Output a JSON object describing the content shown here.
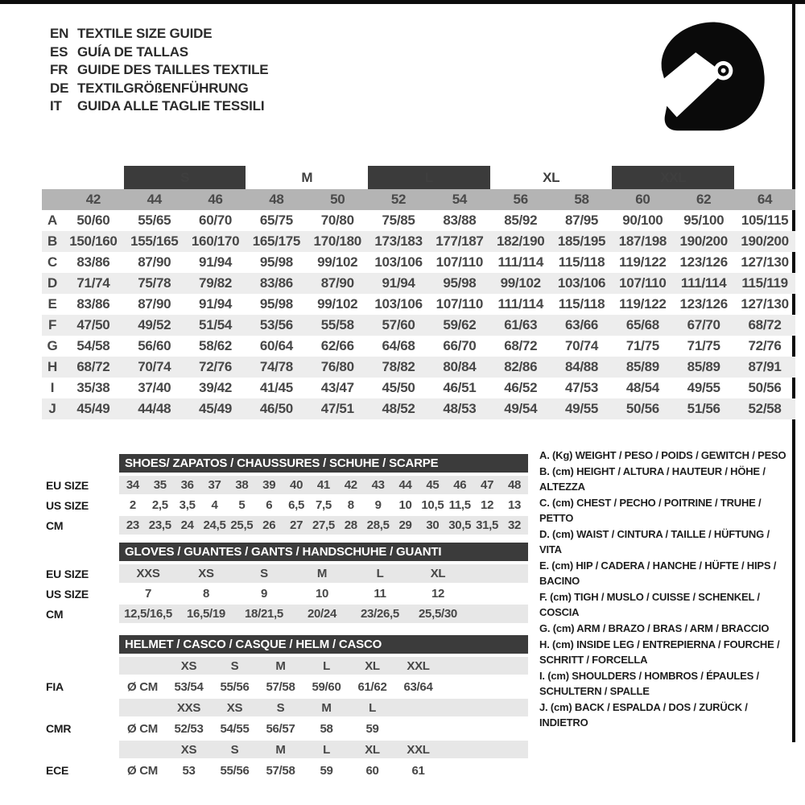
{
  "header": {
    "languages": [
      {
        "code": "EN",
        "title": "TEXTILE SIZE GUIDE"
      },
      {
        "code": "ES",
        "title": "GUÍA DE TALLAS"
      },
      {
        "code": "FR",
        "title": "GUIDE DES TAILLES TEXTILE"
      },
      {
        "code": "DE",
        "title": "TEXTILGRÖßENFÜHRUNG"
      },
      {
        "code": "IT",
        "title": "GUIDA ALLE TAGLIE TESSILI"
      }
    ],
    "icon": "racing-helmet"
  },
  "colors": {
    "dark_bar": "#3b3b3b",
    "size_band": "#b4b4b4",
    "stripe": "#ededed",
    "small_band": "#e7e7e7",
    "frame": "#0c0c0c"
  },
  "size_table": {
    "size_groups": [
      {
        "label": "S",
        "boxed": true
      },
      {
        "label": "M",
        "boxed": false
      },
      {
        "label": "L",
        "boxed": true
      },
      {
        "label": "XL",
        "boxed": false
      },
      {
        "label": "XXL",
        "boxed": true
      }
    ],
    "sizes": [
      "42",
      "44",
      "46",
      "48",
      "50",
      "52",
      "54",
      "56",
      "58",
      "60",
      "62",
      "64"
    ],
    "rows": [
      {
        "letter": "A",
        "values": [
          "50/60",
          "55/65",
          "60/70",
          "65/75",
          "70/80",
          "75/85",
          "83/88",
          "85/92",
          "87/95",
          "90/100",
          "95/100",
          "105/115"
        ]
      },
      {
        "letter": "B",
        "values": [
          "150/160",
          "155/165",
          "160/170",
          "165/175",
          "170/180",
          "173/183",
          "177/187",
          "182/190",
          "185/195",
          "187/198",
          "190/200",
          "190/200"
        ]
      },
      {
        "letter": "C",
        "values": [
          "83/86",
          "87/90",
          "91/94",
          "95/98",
          "99/102",
          "103/106",
          "107/110",
          "111/114",
          "115/118",
          "119/122",
          "123/126",
          "127/130"
        ]
      },
      {
        "letter": "D",
        "values": [
          "71/74",
          "75/78",
          "79/82",
          "83/86",
          "87/90",
          "91/94",
          "95/98",
          "99/102",
          "103/106",
          "107/110",
          "111/114",
          "115/119"
        ]
      },
      {
        "letter": "E",
        "values": [
          "83/86",
          "87/90",
          "91/94",
          "95/98",
          "99/102",
          "103/106",
          "107/110",
          "111/114",
          "115/118",
          "119/122",
          "123/126",
          "127/130"
        ]
      },
      {
        "letter": "F",
        "values": [
          "47/50",
          "49/52",
          "51/54",
          "53/56",
          "55/58",
          "57/60",
          "59/62",
          "61/63",
          "63/66",
          "65/68",
          "67/70",
          "68/72"
        ]
      },
      {
        "letter": "G",
        "values": [
          "54/58",
          "56/60",
          "58/62",
          "60/64",
          "62/66",
          "64/68",
          "66/70",
          "68/72",
          "70/74",
          "71/75",
          "71/75",
          "72/76"
        ]
      },
      {
        "letter": "H",
        "values": [
          "68/72",
          "70/74",
          "72/76",
          "74/78",
          "76/80",
          "78/82",
          "80/84",
          "82/86",
          "84/88",
          "85/89",
          "85/89",
          "87/91"
        ]
      },
      {
        "letter": "I",
        "values": [
          "35/38",
          "37/40",
          "39/42",
          "41/45",
          "43/47",
          "45/50",
          "46/51",
          "46/52",
          "47/53",
          "48/54",
          "49/55",
          "50/56"
        ]
      },
      {
        "letter": "J",
        "values": [
          "45/49",
          "44/48",
          "45/49",
          "46/50",
          "47/51",
          "48/52",
          "48/53",
          "49/54",
          "49/55",
          "50/56",
          "51/56",
          "52/58"
        ]
      }
    ]
  },
  "shoes_table": {
    "title": "SHOES/ ZAPATOS / CHAUSSURES / SCHUHE / SCARPE",
    "rows": [
      {
        "label": "EU SIZE",
        "values": [
          "34",
          "35",
          "36",
          "37",
          "38",
          "39",
          "40",
          "41",
          "42",
          "43",
          "44",
          "45",
          "46",
          "47",
          "48"
        ]
      },
      {
        "label": "US SIZE",
        "values": [
          "2",
          "2,5",
          "3,5",
          "4",
          "5",
          "6",
          "6,5",
          "7,5",
          "8",
          "9",
          "10",
          "10,5",
          "11,5",
          "12",
          "13"
        ]
      },
      {
        "label": "CM",
        "values": [
          "23",
          "23,5",
          "24",
          "24,5",
          "25,5",
          "26",
          "27",
          "27,5",
          "28",
          "28,5",
          "29",
          "30",
          "30,5",
          "31,5",
          "32"
        ]
      }
    ]
  },
  "gloves_table": {
    "title": "GLOVES / GUANTES / GANTS / HANDSCHUHE / GUANTI",
    "rows": [
      {
        "label": "EU SIZE",
        "values": [
          "XXS",
          "XS",
          "S",
          "M",
          "L",
          "XL"
        ]
      },
      {
        "label": "US SIZE",
        "values": [
          "7",
          "8",
          "9",
          "10",
          "11",
          "12"
        ]
      },
      {
        "label": "CM",
        "values": [
          "12,5/16,5",
          "16,5/19",
          "18/21,5",
          "20/24",
          "23/26,5",
          "25,5/30"
        ]
      }
    ]
  },
  "helmet_table": {
    "title": "HELMET / CASCO / CASQUE / HELM / CASCO",
    "sections": [
      {
        "label": "FIA",
        "unit": "Ø CM",
        "sizes": [
          "XS",
          "S",
          "M",
          "L",
          "XL",
          "XXL"
        ],
        "values": [
          "53/54",
          "55/56",
          "57/58",
          "59/60",
          "61/62",
          "63/64"
        ]
      },
      {
        "label": "CMR",
        "unit": "Ø CM",
        "sizes": [
          "XXS",
          "XS",
          "S",
          "M",
          "L",
          ""
        ],
        "values": [
          "52/53",
          "54/55",
          "56/57",
          "58",
          "59",
          ""
        ]
      },
      {
        "label": "ECE",
        "unit": "Ø CM",
        "sizes": [
          "XS",
          "S",
          "M",
          "L",
          "XL",
          "XXL"
        ],
        "values": [
          "53",
          "55/56",
          "57/58",
          "59",
          "60",
          "61"
        ]
      }
    ]
  },
  "legend": {
    "items": [
      "A. (Kg) WEIGHT / PESO / POIDS / GEWITCH / PESO",
      "B. (cm) HEIGHT / ALTURA / HAUTEUR / HÖHE / ALTEZZA",
      "C. (cm) CHEST / PECHO / POITRINE / TRUHE / PETTO",
      "D. (cm) WAIST / CINTURA / TAILLE / HÜFTUNG / VITA",
      "E. (cm) HIP / CADERA / HANCHE / HÜFTE / HIPS / BACINO",
      "F. (cm) TIGH / MUSLO / CUISSE / SCHENKEL / COSCIA",
      "G. (cm) ARM / BRAZO / BRAS / ARM / BRACCIO",
      "H. (cm) INSIDE LEG / ENTREPIERNA / FOURCHE / SCHRITT / FORCELLA",
      "I. (cm) SHOULDERS / HOMBROS / ÉPAULES / SCHULTERN / SPALLE",
      "J. (cm) BACK / ESPALDA / DOS / ZURÜCK / INDIETRO"
    ]
  }
}
